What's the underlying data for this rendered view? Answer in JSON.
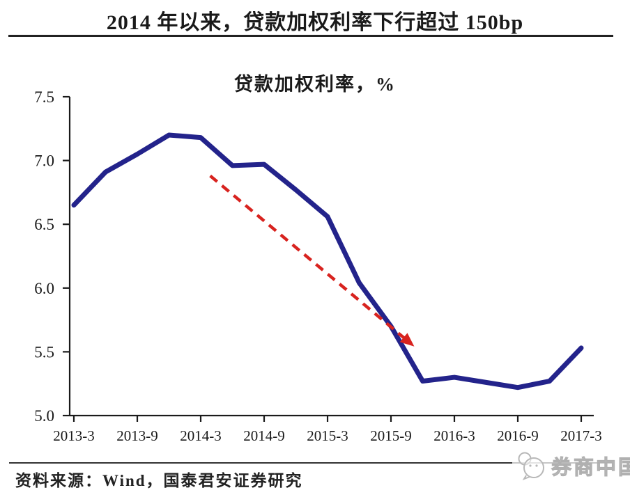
{
  "page": {
    "title": "2014 年以来，贷款加权利率下行超过 150bp",
    "source_note": "资料来源：Wind，国泰君安证券研究",
    "watermark_brand": "券商中国"
  },
  "chart_data": {
    "type": "line",
    "title": "贷款加权利率，%",
    "categories": [
      "2013-3",
      "2013-6",
      "2013-9",
      "2013-12",
      "2014-3",
      "2014-6",
      "2014-9",
      "2014-12",
      "2015-3",
      "2015-6",
      "2015-9",
      "2015-12",
      "2016-3",
      "2016-6",
      "2016-9",
      "2016-12",
      "2017-3"
    ],
    "series": [
      {
        "name": "贷款加权利率",
        "color": "#23238b",
        "values": [
          6.65,
          6.91,
          7.05,
          7.2,
          7.18,
          6.96,
          6.97,
          6.77,
          6.56,
          6.04,
          5.7,
          5.27,
          5.3,
          5.26,
          5.22,
          5.27,
          5.53
        ]
      }
    ],
    "x_tick_labels": [
      "2013-3",
      "2013-9",
      "2014-3",
      "2014-9",
      "2015-3",
      "2015-9",
      "2016-3",
      "2016-9",
      "2017-3"
    ],
    "ylim": [
      5.0,
      7.5
    ],
    "ytick_labels": [
      "5.0",
      "5.5",
      "6.0",
      "6.5",
      "7.0",
      "7.5"
    ],
    "grid": false,
    "legend": "none",
    "annotation_arrow": {
      "style": "dashed",
      "color": "#d8231f",
      "from": {
        "x": 4.3,
        "y": 6.88
      },
      "to": {
        "x": 10.6,
        "y": 5.57
      }
    }
  }
}
